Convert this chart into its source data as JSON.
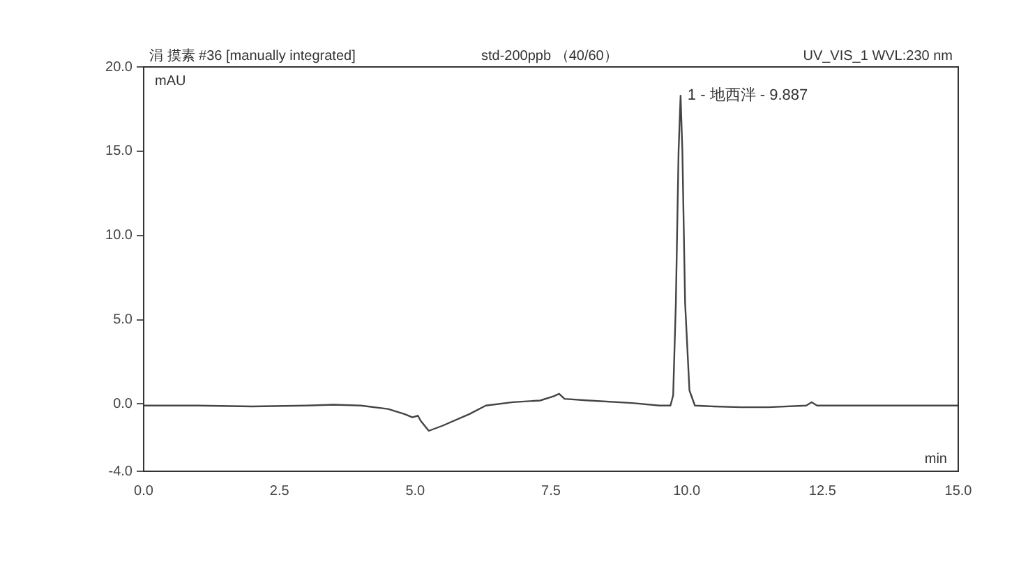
{
  "chart_data": {
    "type": "line",
    "title": "涓 摸素 #36 [manually integrated]",
    "subtitle": "std-200ppb （40/60）",
    "xlabel": "min",
    "ylabel": "mAU",
    "annotations": [
      "UV_VIS_1 WVL:230 nm",
      {
        "text": "1 - 地西泮 - 9.887",
        "x": 9.887,
        "y": 18.3
      }
    ],
    "x": [
      0,
      1,
      2,
      3,
      3.5,
      4,
      4.5,
      4.8,
      4.95,
      5.05,
      5.1,
      5.25,
      5.5,
      6,
      6.3,
      6.8,
      7.3,
      7.55,
      7.65,
      7.75,
      8.2,
      9,
      9.5,
      9.7,
      9.75,
      9.8,
      9.85,
      9.887,
      9.92,
      9.97,
      10.05,
      10.15,
      10.5,
      11,
      11.5,
      12.2,
      12.3,
      12.4,
      13,
      14,
      15
    ],
    "series": [
      {
        "color": "#444444",
        "values": [
          -0.1,
          -0.1,
          -0.15,
          -0.1,
          -0.05,
          -0.1,
          -0.3,
          -0.6,
          -0.8,
          -0.7,
          -1.0,
          -1.6,
          -1.3,
          -0.6,
          -0.1,
          0.1,
          0.2,
          0.45,
          0.6,
          0.3,
          0.2,
          0.05,
          -0.1,
          -0.1,
          0.5,
          6,
          15,
          18.3,
          15,
          6,
          0.8,
          -0.1,
          -0.15,
          -0.2,
          -0.2,
          -0.1,
          0.1,
          -0.1,
          -0.1,
          -0.1,
          -0.1
        ]
      }
    ],
    "xlim": [
      0,
      15
    ],
    "xticks": [
      {
        "value": 0,
        "label": "0.0"
      },
      {
        "value": 2.5,
        "label": "2.5"
      },
      {
        "value": 5,
        "label": "5.0"
      },
      {
        "value": 7.5,
        "label": "7.5"
      },
      {
        "value": 10,
        "label": "10.0"
      },
      {
        "value": 12.5,
        "label": "12.5"
      },
      {
        "value": 15,
        "label": "15.0"
      }
    ],
    "ylim": [
      -4,
      20
    ],
    "yticks": [
      {
        "value": -4,
        "label": "-4.0"
      },
      {
        "value": 0,
        "label": "0.0"
      },
      {
        "value": 5,
        "label": "5.0"
      },
      {
        "value": 10,
        "label": "10.0"
      },
      {
        "value": 15,
        "label": "15.0"
      },
      {
        "value": 20,
        "label": "20.0"
      }
    ],
    "grid": false,
    "legend": false,
    "marker": "none",
    "line_style": "solid"
  }
}
